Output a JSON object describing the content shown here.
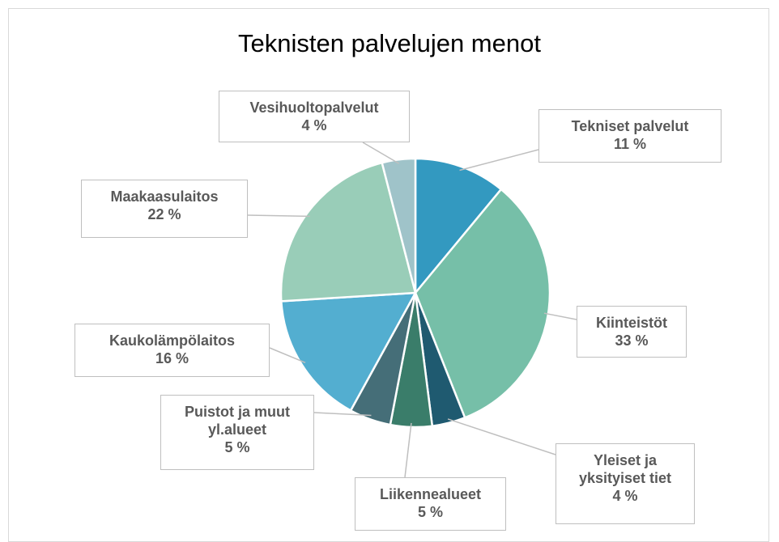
{
  "chart_data": {
    "type": "pie",
    "title": "Teknisten palvelujen menot",
    "categories": [
      "Tekniset palvelut",
      "Kiinteistöt",
      "Yleiset ja yksityiset tiet",
      "Liikennealueet",
      "Puistot ja muut yl.alueet",
      "Kaukolämpölaitos",
      "Maakaasulaitos",
      "Vesihuoltopalvelut"
    ],
    "values": [
      11,
      33,
      4,
      5,
      5,
      16,
      22,
      4
    ],
    "value_labels": [
      "11 %",
      "33 %",
      "4 %",
      "5 %",
      "5 %",
      "16 %",
      "22 %",
      "4 %"
    ],
    "colors": [
      "#3399c0",
      "#76bfa8",
      "#1f5a70",
      "#3a7d6a",
      "#456e78",
      "#53aed0",
      "#99cdb8",
      "#9fc3c9"
    ]
  }
}
